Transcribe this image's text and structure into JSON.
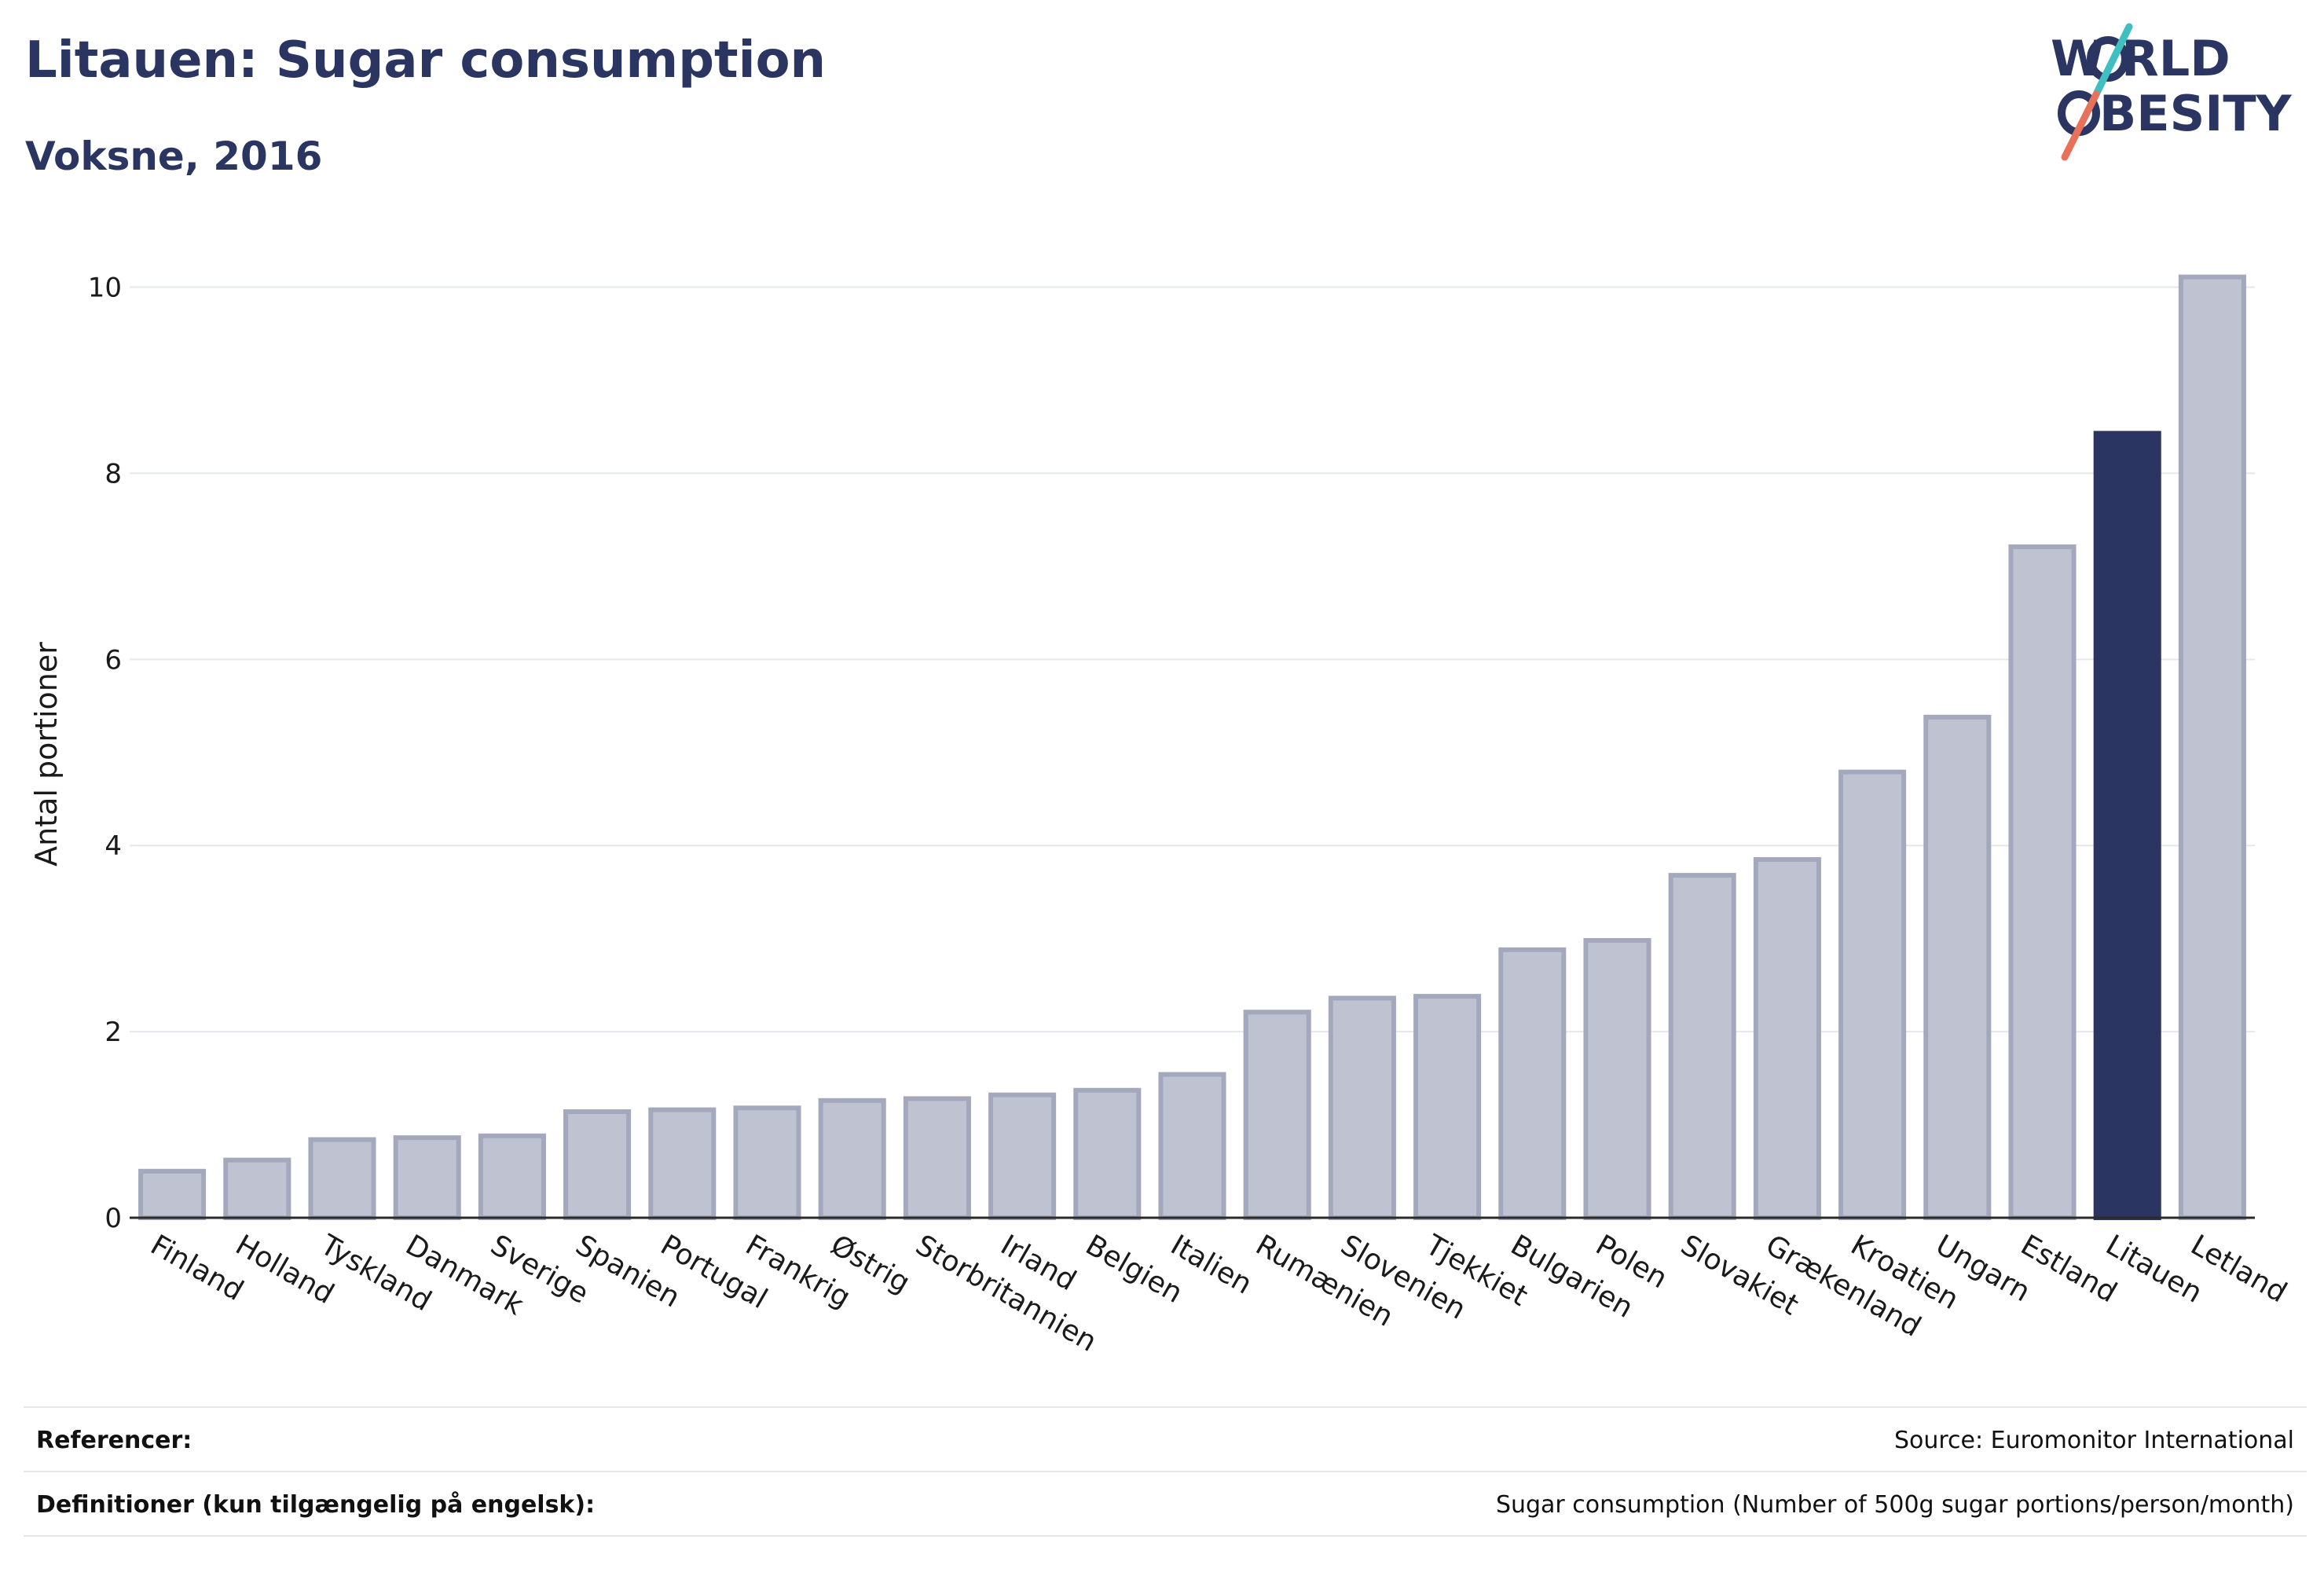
{
  "header": {
    "title": "Litauen: Sugar consumption",
    "subtitle": "Voksne, 2016"
  },
  "logo": {
    "line1": "W RLD",
    "line2": "BESITY",
    "text": "WORLD OBESITY",
    "colors": {
      "text": "#2b3561",
      "slash_top": "#3fbfbf",
      "slash_bottom": "#e8715a"
    }
  },
  "colors": {
    "bar": "#bfc3d1",
    "bar_border": "#a3a8bd",
    "highlight": "#2b3561",
    "grid": "#e5e7ec",
    "axis": "#2a2a2a"
  },
  "chart_data": {
    "type": "bar",
    "title": "Litauen: Sugar consumption",
    "subtitle": "Voksne, 2016",
    "xlabel": "",
    "ylabel": "Antal portioner",
    "ylim": [
      0,
      10.3
    ],
    "yticks": [
      0,
      2,
      4,
      6,
      8,
      10
    ],
    "grid": true,
    "highlight": "Litauen",
    "categories": [
      "Finland",
      "Holland",
      "Tyskland",
      "Danmark",
      "Sverige",
      "Spanien",
      "Portugal",
      "Frankrig",
      "Østrig",
      "Storbritannien",
      "Irland",
      "Belgien",
      "Italien",
      "Rumænien",
      "Slovenien",
      "Tjekkiet",
      "Bulgarien",
      "Polen",
      "Slovakiet",
      "Grækenland",
      "Kroatien",
      "Ungarn",
      "Estland",
      "Litauen",
      "Letland"
    ],
    "values": [
      0.5,
      0.62,
      0.84,
      0.86,
      0.88,
      1.14,
      1.16,
      1.18,
      1.26,
      1.28,
      1.32,
      1.37,
      1.54,
      2.21,
      2.36,
      2.38,
      2.88,
      2.98,
      3.68,
      3.85,
      4.79,
      5.38,
      7.21,
      8.43,
      10.11
    ]
  },
  "footer": {
    "references_label": "Referencer:",
    "references_value": "Source: Euromonitor International",
    "definitions_label": "Definitioner (kun tilgængelig på engelsk):",
    "definitions_value": "Sugar consumption (Number of 500g sugar portions/person/month)"
  }
}
